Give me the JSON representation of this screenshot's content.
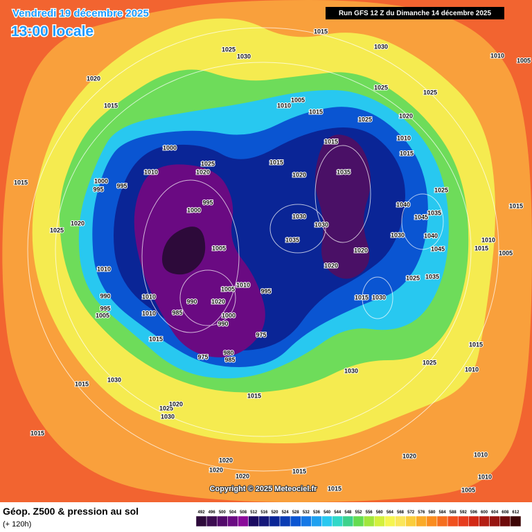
{
  "header": {
    "date": "Vendredi 19 décembre 2025",
    "time": "13:00 locale",
    "run": "Run GFS 12 Z du Dimanche 14 décembre 2025"
  },
  "isobars": [
    "1015",
    "1025",
    "1030",
    "1030",
    "1010",
    "1005",
    "1020",
    "1015",
    "1025",
    "1025",
    "1010",
    "1005",
    "1015",
    "1020",
    "1025",
    "1010",
    "1015",
    "1000",
    "1015",
    "1015",
    "1020",
    "1035",
    "1025",
    "1020",
    "1010",
    "1000",
    "995",
    "995",
    "1015",
    "995",
    "1000",
    "1025",
    "1040",
    "1045",
    "1035",
    "1030",
    "1030",
    "1015",
    "1025",
    "1020",
    "1035",
    "1030",
    "1040",
    "1010",
    "1015",
    "1005",
    "1020",
    "1045",
    "1005",
    "1010",
    "1020",
    "1025",
    "1035",
    "1005",
    "1010",
    "995",
    "990",
    "1015",
    "1030",
    "1010",
    "990",
    "1020",
    "995",
    "1005",
    "985",
    "1000",
    "990",
    "1010",
    "975",
    "1015",
    "1015",
    "975",
    "980",
    "985",
    "1025",
    "1030",
    "1010",
    "1030",
    "1015",
    "1015",
    "1025",
    "1030",
    "1020",
    "1015",
    "1020",
    "1020",
    "1010",
    "1020",
    "1015",
    "1010",
    "1020",
    "1015",
    "1005"
  ],
  "copyright": "Copyright © 2025 Meteociel.fr",
  "footer": {
    "title": "Géop. Z500 & pression au sol",
    "lead": "(+ 120h)"
  },
  "colorbar": {
    "ticks": [
      492,
      496,
      500,
      504,
      508,
      512,
      516,
      520,
      524,
      528,
      532,
      536,
      540,
      544,
      548,
      552,
      556,
      560,
      564,
      568,
      572,
      576,
      580,
      584,
      588,
      592,
      596,
      600,
      604,
      608,
      612
    ],
    "colors": [
      "#2d0a3a",
      "#3c0c50",
      "#520a6a",
      "#6a0a82",
      "#8a0a9a",
      "#1a0a60",
      "#15187a",
      "#0a2596",
      "#0a3cb4",
      "#0a55d2",
      "#1478e6",
      "#1ea0f0",
      "#28c8f0",
      "#30d8c8",
      "#3cd28c",
      "#64dc50",
      "#a0e63c",
      "#d2f03c",
      "#f5f550",
      "#fae65a",
      "#facd3c",
      "#faaa28",
      "#fa8c1e",
      "#f56e1e",
      "#f0501e",
      "#e63c1e",
      "#d22814",
      "#b41e14",
      "#961410",
      "#6e0a0a",
      "#3c0505"
    ]
  }
}
